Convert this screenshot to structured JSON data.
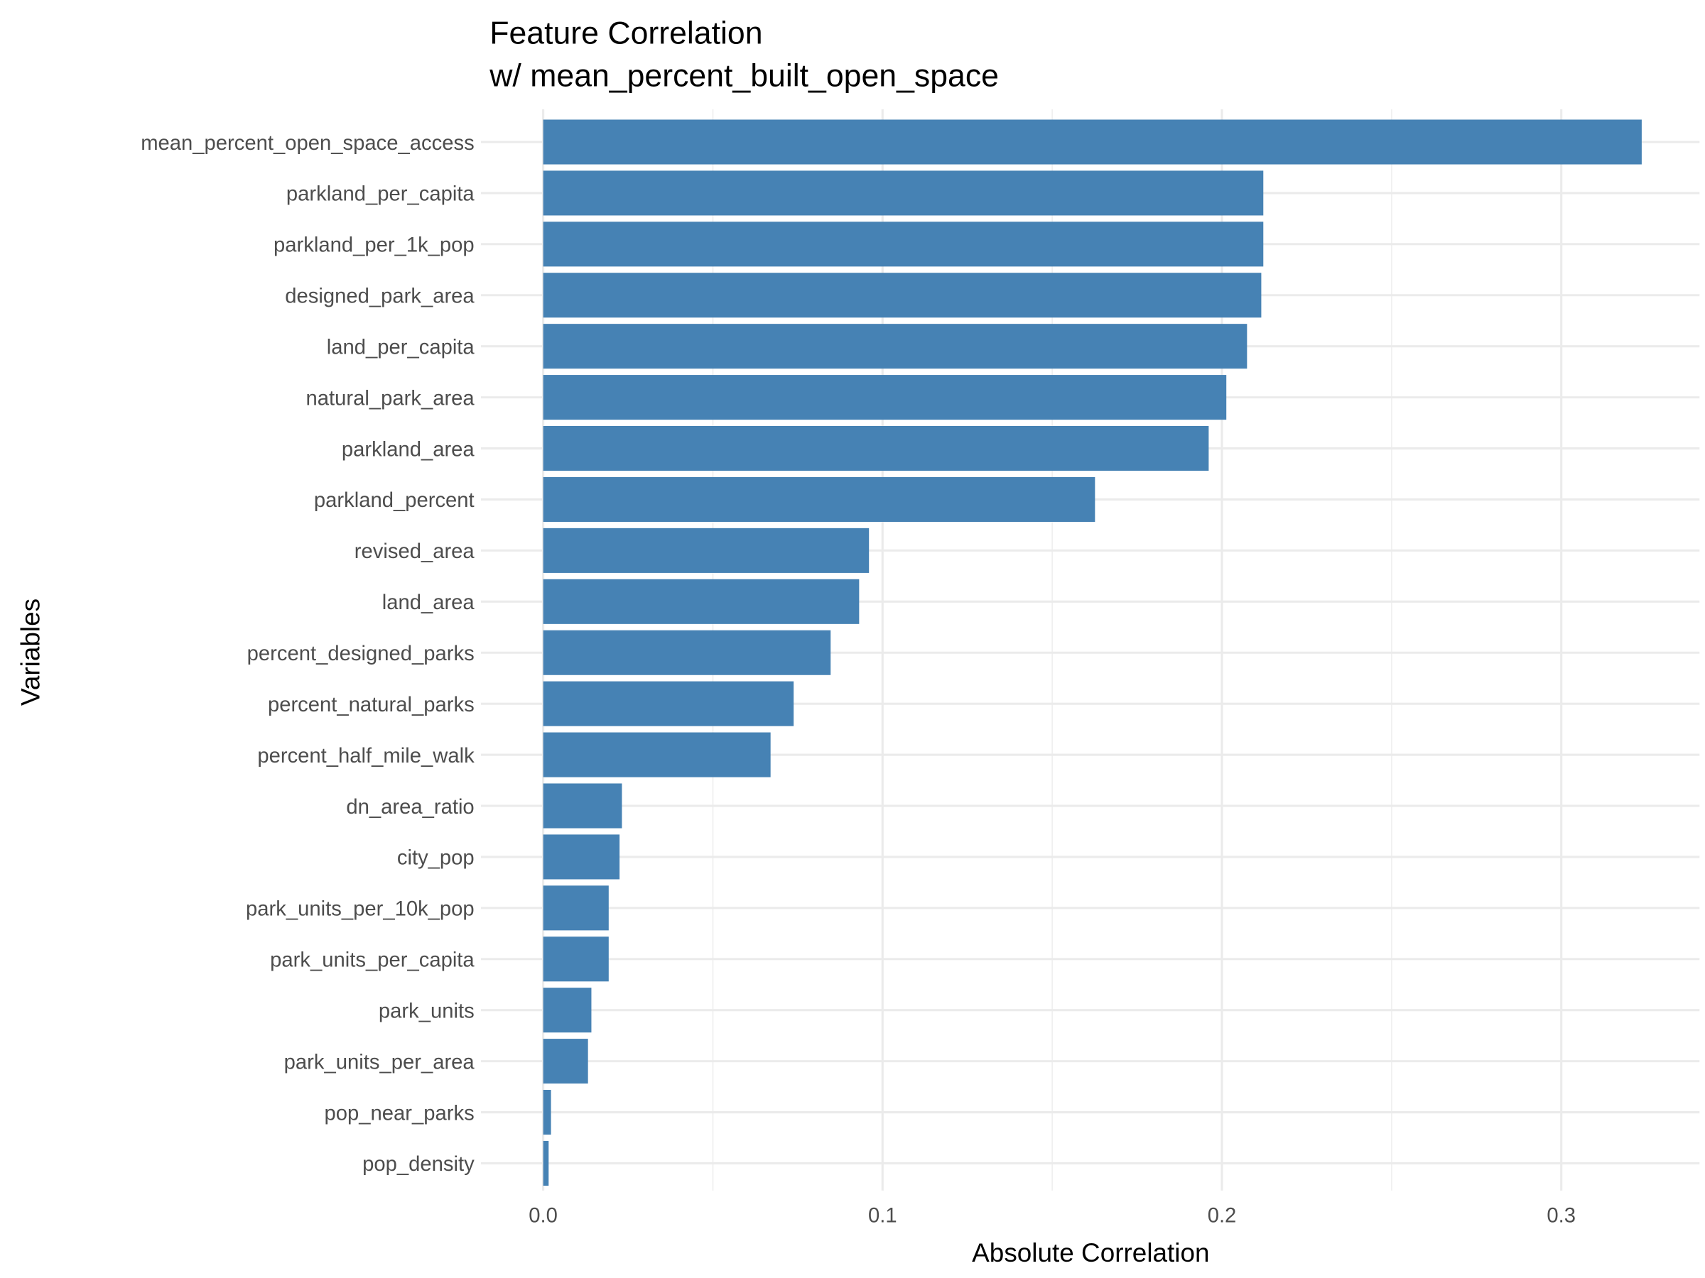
{
  "chart_data": {
    "type": "bar",
    "orientation": "horizontal",
    "title": "Feature Correlation",
    "subtitle": "w/ mean_percent_built_open_space",
    "xlabel": "Absolute Correlation",
    "ylabel": "Variables",
    "xlim": [
      -0.018,
      0.341
    ],
    "xticks": [
      0.0,
      0.1,
      0.2,
      0.3
    ],
    "xtick_labels": [
      "0.0",
      "0.1",
      "0.2",
      "0.3"
    ],
    "grid": true,
    "bar_color": "#4682B4",
    "categories": [
      "mean_percent_open_space_access",
      "parkland_per_capita",
      "parkland_per_1k_pop",
      "designed_park_area",
      "land_per_capita",
      "natural_park_area",
      "parkland_area",
      "parkland_percent",
      "revised_area",
      "land_area",
      "percent_designed_parks",
      "percent_natural_parks",
      "percent_half_mile_walk",
      "dn_area_ratio",
      "city_pop",
      "park_units_per_10k_pop",
      "park_units_per_capita",
      "park_units",
      "park_units_per_area",
      "pop_near_parks",
      "pop_density"
    ],
    "values": [
      0.3237,
      0.2122,
      0.2122,
      0.2116,
      0.2074,
      0.2013,
      0.1961,
      0.1626,
      0.096,
      0.0931,
      0.0847,
      0.0738,
      0.067,
      0.0232,
      0.0225,
      0.0193,
      0.0193,
      0.0142,
      0.0132,
      0.0023,
      0.0016
    ]
  }
}
